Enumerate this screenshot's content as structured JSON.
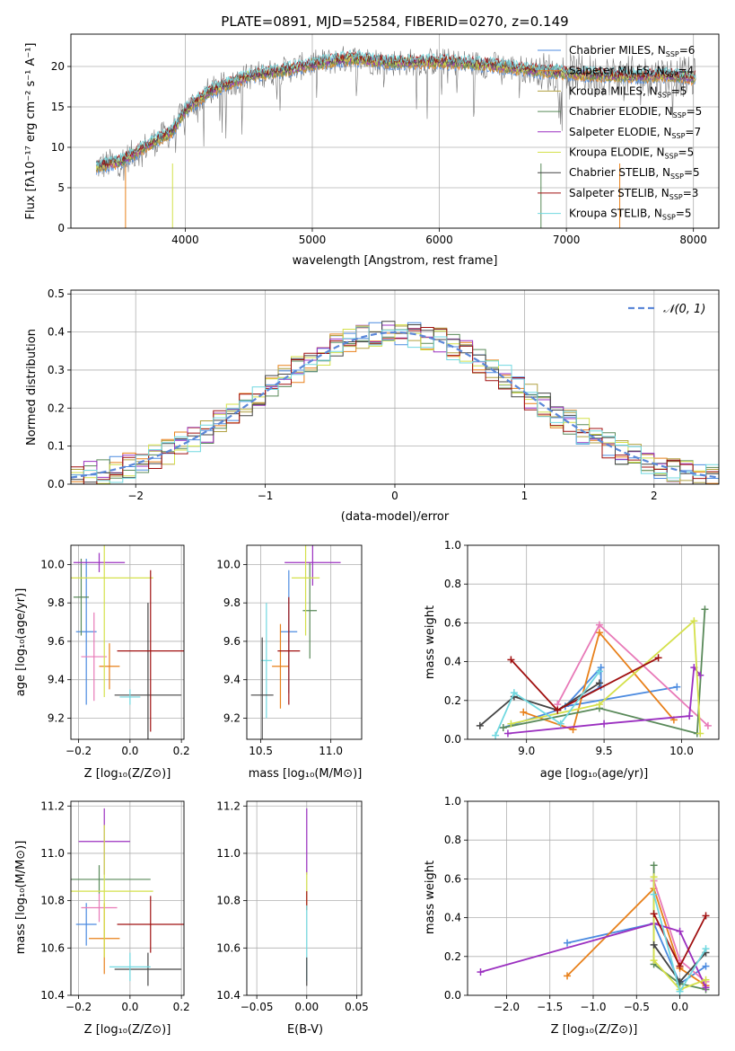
{
  "page_title": "PLATE=0891, MJD=52584, FIBERID=0270, z=0.149",
  "legend_spectrum": [
    {
      "text": "Chabrier MILES, N",
      "sub": "SSP",
      "tail": "=6",
      "color": "#4c8be0"
    },
    {
      "text": "Salpeter MILES, N",
      "sub": "SSP",
      "tail": "=4",
      "color": "#e8801a"
    },
    {
      "text": "Kroupa MILES, N",
      "sub": "SSP",
      "tail": "=5",
      "color": "#b0a040"
    },
    {
      "text": "Chabrier ELODIE, N",
      "sub": "SSP",
      "tail": "=5",
      "color": "#5a8a5a"
    },
    {
      "text": "Salpeter ELODIE, N",
      "sub": "SSP",
      "tail": "=7",
      "color": "#9b30c0"
    },
    {
      "text": "Kroupa ELODIE, N",
      "sub": "SSP",
      "tail": "=5",
      "color": "#d4e04a"
    },
    {
      "text": "Chabrier STELIB, N",
      "sub": "SSP",
      "tail": "=5",
      "color": "#444444"
    },
    {
      "text": "Salpeter STELIB, N",
      "sub": "SSP",
      "tail": "=3",
      "color": "#a01010"
    },
    {
      "text": "Kroupa STELIB, N",
      "sub": "SSP",
      "tail": "=5",
      "color": "#70d8e0"
    }
  ],
  "legend_hist": "𝒩(0, 1)",
  "axes_labels": {
    "spec_x": "wavelength [Angstrom, rest frame]",
    "spec_y": "Flux [fλ10⁻¹⁷ erg cm⁻² s⁻¹ A⁻¹]",
    "hist_x": "(data-model)/error",
    "hist_y": "Normed distribution",
    "z_label": "Z [log₁₀(Z/Z⊙)]",
    "mass_label": "mass [log₁₀(M/M⊙)]",
    "age_label": "age  [log₁₀(age/yr)]",
    "weight_label": "mass weight",
    "ebv_label": "E(B-V)"
  },
  "chart_data": [
    {
      "type": "line",
      "panel": "spectrum",
      "xlabel": "wavelength [Angstrom, rest frame]",
      "ylabel": "Flux [fλ10⁻¹⁷ erg cm⁻² s⁻¹ A⁻¹]",
      "xlim": [
        3100,
        8200
      ],
      "ylim": [
        0,
        24
      ],
      "xticks": [
        4000,
        5000,
        6000,
        7000,
        8000
      ],
      "yticks": [
        0,
        5,
        10,
        15,
        20
      ],
      "continuum": {
        "x": [
          3300,
          3500,
          3700,
          3900,
          4000,
          4200,
          4500,
          4800,
          5000,
          5300,
          5600,
          6000,
          6400,
          6800,
          7200,
          7500,
          7800,
          8000
        ],
        "y": [
          7.6,
          8.3,
          10.2,
          12.0,
          14.6,
          17.0,
          18.8,
          19.6,
          20.3,
          21.0,
          20.5,
          20.6,
          20.2,
          19.4,
          19.0,
          18.8,
          18.9,
          18.6
        ]
      }
    },
    {
      "type": "line",
      "panel": "histogram",
      "xlabel": "(data-model)/error",
      "ylabel": "Normed distribution",
      "xlim": [
        -2.5,
        2.5
      ],
      "ylim": [
        0,
        0.51
      ],
      "xticks": [
        -2,
        -1,
        0,
        1,
        2
      ],
      "yticks": [
        0.0,
        0.1,
        0.2,
        0.3,
        0.4,
        0.5
      ],
      "reference_curve": "N(0,1)"
    },
    {
      "type": "scatter",
      "panel": "age-vs-Z",
      "xlabel": "Z [log₁₀(Z/Z⊙)]",
      "ylabel": "age  [log₁₀(age/yr)]",
      "xlim": [
        -0.23,
        0.21
      ],
      "ylim": [
        9.09,
        10.1
      ],
      "xticks": [
        -0.2,
        0.0,
        0.2
      ],
      "yticks": [
        9.2,
        9.4,
        9.6,
        9.8,
        10.0
      ],
      "points": [
        {
          "x": -0.17,
          "y": 9.65,
          "xerr": 0.04,
          "yerr": 0.38,
          "color": "#4c8be0"
        },
        {
          "x": -0.08,
          "y": 9.47,
          "xerr": 0.04,
          "yerr": 0.12,
          "color": "#e8801a"
        },
        {
          "x": -0.14,
          "y": 9.52,
          "xerr": 0.05,
          "yerr": 0.23,
          "color": "#e87ab8"
        },
        {
          "x": -0.19,
          "y": 9.83,
          "xerr": 0.03,
          "yerr": 0.2,
          "color": "#5a8a5a"
        },
        {
          "x": -0.12,
          "y": 10.01,
          "xerr": 0.1,
          "yerr": 0.05,
          "color": "#9b30c0"
        },
        {
          "x": -0.1,
          "y": 9.93,
          "xerr": 0.19,
          "yerr": 0.62,
          "color": "#d4e04a"
        },
        {
          "x": 0.07,
          "y": 9.32,
          "xerr": 0.13,
          "yerr": 0.48,
          "color": "#444444"
        },
        {
          "x": 0.08,
          "y": 9.55,
          "xerr": 0.13,
          "yerr": 0.42,
          "color": "#a01010"
        },
        {
          "x": 0.0,
          "y": 9.31,
          "xerr": 0.04,
          "yerr": 0.04,
          "color": "#70d8e0"
        }
      ]
    },
    {
      "type": "scatter",
      "panel": "age-vs-mass",
      "xlabel": "mass [log₁₀(M/M⊙)]",
      "ylabel": "",
      "xlim": [
        10.4,
        11.22
      ],
      "ylim": [
        9.09,
        10.1
      ],
      "xticks": [
        10.5,
        11.0
      ],
      "yticks": [
        9.2,
        9.4,
        9.6,
        9.8,
        10.0
      ],
      "points": [
        {
          "x": 10.7,
          "y": 9.65,
          "xerr": 0.06,
          "yerr": 0.32,
          "color": "#4c8be0"
        },
        {
          "x": 10.64,
          "y": 9.47,
          "xerr": 0.06,
          "yerr": 0.22,
          "color": "#e8801a"
        },
        {
          "x": 10.54,
          "y": 9.5,
          "xerr": 0.04,
          "yerr": 0.3,
          "color": "#70d8e0"
        },
        {
          "x": 10.7,
          "y": 9.55,
          "xerr": 0.08,
          "yerr": 0.28,
          "color": "#a01010"
        },
        {
          "x": 10.85,
          "y": 9.76,
          "xerr": 0.05,
          "yerr": 0.25,
          "color": "#5a8a5a"
        },
        {
          "x": 10.87,
          "y": 10.01,
          "xerr": 0.2,
          "yerr": 0.12,
          "color": "#9b30c0"
        },
        {
          "x": 10.82,
          "y": 9.93,
          "xerr": 0.1,
          "yerr": 0.3,
          "color": "#d4e04a"
        },
        {
          "x": 10.51,
          "y": 9.32,
          "xerr": 0.08,
          "yerr": 0.3,
          "color": "#444444"
        }
      ]
    },
    {
      "type": "line",
      "panel": "weight-vs-age",
      "xlabel": "age  [log₁₀(age/yr)]",
      "ylabel": "mass weight",
      "xlim": [
        8.62,
        10.24
      ],
      "ylim": [
        0,
        1
      ],
      "xticks": [
        9.0,
        9.5,
        10.0
      ],
      "yticks": [
        0.0,
        0.2,
        0.4,
        0.6,
        0.8,
        1.0
      ],
      "series": [
        {
          "color": "#4c8be0",
          "x": [
            8.85,
            9.2,
            9.48,
            9.48,
            9.25,
            9.97
          ],
          "y": [
            0.06,
            0.15,
            0.27,
            0.37,
            0.17,
            0.27
          ]
        },
        {
          "color": "#e8801a",
          "x": [
            8.98,
            9.3,
            9.47,
            9.95
          ],
          "y": [
            0.14,
            0.05,
            0.55,
            0.1
          ]
        },
        {
          "color": "#e87ab8",
          "x": [
            9.2,
            9.47,
            10.17
          ],
          "y": [
            0.18,
            0.59,
            0.07
          ]
        },
        {
          "color": "#5a8a5a",
          "x": [
            8.85,
            9.47,
            10.1,
            10.15
          ],
          "y": [
            0.06,
            0.16,
            0.03,
            0.67
          ]
        },
        {
          "color": "#9b30c0",
          "x": [
            8.88,
            9.5,
            10.05,
            10.08,
            10.12
          ],
          "y": [
            0.03,
            0.08,
            0.12,
            0.37,
            0.33
          ]
        },
        {
          "color": "#d4e04a",
          "x": [
            8.9,
            9.47,
            10.08,
            10.12
          ],
          "y": [
            0.08,
            0.18,
            0.61,
            0.03
          ]
        },
        {
          "color": "#444444",
          "x": [
            8.7,
            8.92,
            9.2,
            9.47
          ],
          "y": [
            0.07,
            0.22,
            0.15,
            0.29
          ]
        },
        {
          "color": "#a01010",
          "x": [
            8.9,
            9.2,
            9.85
          ],
          "y": [
            0.41,
            0.15,
            0.42
          ]
        },
        {
          "color": "#70d8e0",
          "x": [
            8.8,
            8.92,
            9.22,
            9.47
          ],
          "y": [
            0.02,
            0.24,
            0.08,
            0.35
          ]
        }
      ]
    },
    {
      "type": "scatter",
      "panel": "mass-vs-Z",
      "xlabel": "Z [log₁₀(Z/Z⊙)]",
      "ylabel": "mass [log₁₀(M/M⊙)]",
      "xlim": [
        -0.23,
        0.21
      ],
      "ylim": [
        10.4,
        11.22
      ],
      "xticks": [
        -0.2,
        0.0,
        0.2
      ],
      "yticks": [
        10.4,
        10.6,
        10.8,
        11.0,
        11.2
      ],
      "points": [
        {
          "x": -0.17,
          "y": 10.7,
          "xerr": 0.04,
          "yerr": 0.09,
          "color": "#4c8be0"
        },
        {
          "x": -0.1,
          "y": 10.64,
          "xerr": 0.06,
          "yerr": 0.15,
          "color": "#e8801a"
        },
        {
          "x": -0.12,
          "y": 10.77,
          "xerr": 0.07,
          "yerr": 0.06,
          "color": "#e87ab8"
        },
        {
          "x": -0.12,
          "y": 10.89,
          "xerr": 0.2,
          "yerr": 0.06,
          "color": "#5a8a5a"
        },
        {
          "x": -0.1,
          "y": 11.05,
          "xerr": 0.1,
          "yerr": 0.14,
          "color": "#9b30c0"
        },
        {
          "x": -0.1,
          "y": 10.84,
          "xerr": 0.19,
          "yerr": 0.28,
          "color": "#d4e04a"
        },
        {
          "x": 0.07,
          "y": 10.51,
          "xerr": 0.13,
          "yerr": 0.07,
          "color": "#444444"
        },
        {
          "x": 0.08,
          "y": 10.7,
          "xerr": 0.13,
          "yerr": 0.12,
          "color": "#a01010"
        },
        {
          "x": 0.0,
          "y": 10.52,
          "xerr": 0.08,
          "yerr": 0.06,
          "color": "#70d8e0"
        }
      ]
    },
    {
      "type": "scatter",
      "panel": "mass-vs-ebv",
      "xlabel": "E(B-V)",
      "ylabel": "",
      "xlim": [
        -0.06,
        0.055
      ],
      "ylim": [
        10.4,
        11.22
      ],
      "xticks": [
        -0.05,
        0.0,
        0.05
      ],
      "yticks": [
        10.4,
        10.6,
        10.8,
        11.0,
        11.2
      ],
      "points": [
        {
          "x": 0.0,
          "y": 11.05,
          "xerr": 0,
          "yerr": 0.14,
          "color": "#9b30c0"
        },
        {
          "x": 0.0,
          "y": 10.84,
          "xerr": 0,
          "yerr": 0.08,
          "color": "#d4e04a"
        },
        {
          "x": 0.0,
          "y": 10.8,
          "xerr": 0,
          "yerr": 0.04,
          "color": "#a01010"
        },
        {
          "x": 0.0,
          "y": 10.62,
          "xerr": 0,
          "yerr": 0.16,
          "color": "#70d8e0"
        },
        {
          "x": 0.0,
          "y": 10.5,
          "xerr": 0,
          "yerr": 0.06,
          "color": "#444444"
        }
      ]
    },
    {
      "type": "line",
      "panel": "weight-vs-Z",
      "xlabel": "Z [log₁₀(Z/Z⊙)]",
      "ylabel": "mass weight",
      "xlim": [
        -2.45,
        0.45
      ],
      "ylim": [
        0,
        1
      ],
      "xticks": [
        -2.0,
        -1.5,
        -1.0,
        -0.5,
        0.0
      ],
      "yticks": [
        0.0,
        0.2,
        0.4,
        0.6,
        0.8,
        1.0
      ],
      "series": [
        {
          "color": "#4c8be0",
          "x": [
            -1.3,
            -0.3,
            0.0,
            0.3
          ],
          "y": [
            0.27,
            0.37,
            0.06,
            0.15
          ]
        },
        {
          "color": "#e8801a",
          "x": [
            -1.3,
            -0.3,
            0.0,
            0.3
          ],
          "y": [
            0.1,
            0.55,
            0.14,
            0.05
          ]
        },
        {
          "color": "#e87ab8",
          "x": [
            -0.3,
            0.0,
            0.3
          ],
          "y": [
            0.59,
            0.18,
            0.07
          ]
        },
        {
          "color": "#5a8a5a",
          "x": [
            -0.3,
            -0.3,
            0.0,
            0.3
          ],
          "y": [
            0.67,
            0.16,
            0.06,
            0.03
          ]
        },
        {
          "color": "#9b30c0",
          "x": [
            -2.3,
            -0.3,
            0.0,
            0.3
          ],
          "y": [
            0.12,
            0.37,
            0.33,
            0.04
          ]
        },
        {
          "color": "#d4e04a",
          "x": [
            -0.3,
            -0.3,
            0.0,
            0.3
          ],
          "y": [
            0.61,
            0.18,
            0.03,
            0.08
          ]
        },
        {
          "color": "#444444",
          "x": [
            -0.3,
            0.0,
            0.3
          ],
          "y": [
            0.26,
            0.07,
            0.22
          ]
        },
        {
          "color": "#a01010",
          "x": [
            -0.3,
            0.0,
            0.3
          ],
          "y": [
            0.42,
            0.15,
            0.41
          ]
        },
        {
          "color": "#70d8e0",
          "x": [
            -0.3,
            0.0,
            0.3
          ],
          "y": [
            0.52,
            0.02,
            0.24
          ]
        }
      ]
    }
  ]
}
